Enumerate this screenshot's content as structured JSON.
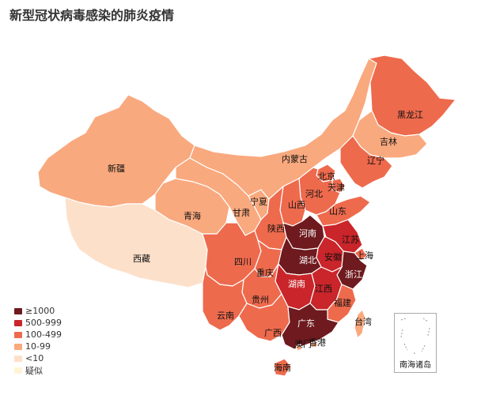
{
  "title": "新型冠状病毒感染的肺炎疫情",
  "colors": {
    "ge1000": "#6e1a1e",
    "500_999": "#c9252a",
    "100_499": "#ee6a4d",
    "10_99": "#f9a97e",
    "lt10": "#fde0ca",
    "suspected": "#fff4d6"
  },
  "legend": [
    {
      "label": "≥1000",
      "color": "#6e1a1e"
    },
    {
      "label": "500-999",
      "color": "#c9252a"
    },
    {
      "label": "100-499",
      "color": "#ee6a4d"
    },
    {
      "label": "10-99",
      "color": "#f9a97e"
    },
    {
      "label": "<10",
      "color": "#fde0ca"
    },
    {
      "label": "疑似",
      "color": "#fff4d6"
    }
  ],
  "provinces": [
    {
      "name": "新疆",
      "level": "10-99"
    },
    {
      "name": "西藏",
      "level": "<10"
    },
    {
      "name": "青海",
      "level": "10-99"
    },
    {
      "name": "甘肃",
      "level": "10-99"
    },
    {
      "name": "宁夏",
      "level": "10-99"
    },
    {
      "name": "内蒙古",
      "level": "10-99"
    },
    {
      "name": "黑龙江",
      "level": "100-499"
    },
    {
      "name": "吉林",
      "level": "10-99"
    },
    {
      "name": "辽宁",
      "level": "100-499"
    },
    {
      "name": "北京",
      "level": "100-499"
    },
    {
      "name": "天津",
      "level": "100-499"
    },
    {
      "name": "河北",
      "level": "100-499"
    },
    {
      "name": "山西",
      "level": "100-499"
    },
    {
      "name": "山东",
      "level": "100-499"
    },
    {
      "name": "陕西",
      "level": "100-499"
    },
    {
      "name": "河南",
      "level": "≥1000"
    },
    {
      "name": "江苏",
      "level": "500-999"
    },
    {
      "name": "安徽",
      "level": "500-999"
    },
    {
      "name": "上海",
      "level": "100-499"
    },
    {
      "name": "四川",
      "level": "100-499"
    },
    {
      "name": "湖北",
      "level": "≥1000"
    },
    {
      "name": "重庆",
      "level": "100-499"
    },
    {
      "name": "浙江",
      "level": "≥1000"
    },
    {
      "name": "湖南",
      "level": "500-999"
    },
    {
      "name": "江西",
      "level": "500-999"
    },
    {
      "name": "贵州",
      "level": "100-499"
    },
    {
      "name": "福建",
      "level": "100-499"
    },
    {
      "name": "云南",
      "level": "100-499"
    },
    {
      "name": "广西",
      "level": "100-499"
    },
    {
      "name": "广东",
      "level": "≥1000"
    },
    {
      "name": "台湾",
      "level": "10-99"
    },
    {
      "name": "澳门",
      "level": "10-99"
    },
    {
      "name": "香港",
      "level": "10-99"
    },
    {
      "name": "海南",
      "level": "100-499"
    }
  ],
  "inset_label": "南海诸岛"
}
